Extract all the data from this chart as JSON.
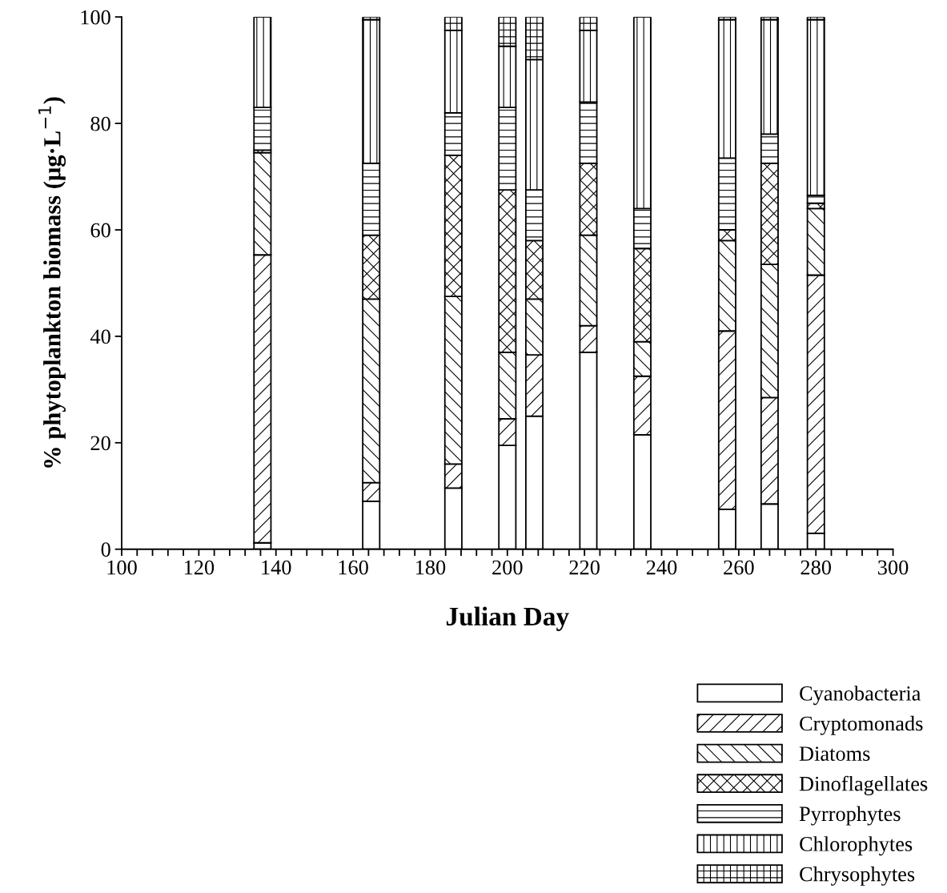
{
  "chart_data": {
    "type": "bar",
    "stacked": true,
    "xlabel": "Julian Day",
    "ylabel": "% phytoplankton biomass (μg·L$^{−1}$)",
    "x": [
      136.5,
      164.7,
      186,
      200,
      207,
      221,
      235,
      257,
      268,
      280
    ],
    "series": [
      {
        "name": "Cyanobacteria",
        "color": "#ffffff",
        "values": [
          1.2,
          9,
          11.5,
          19.5,
          25,
          37,
          21.5,
          7.5,
          8.5,
          3
        ]
      },
      {
        "name": "Cryptomonads",
        "color": "#000000",
        "values": [
          54.1,
          3.5,
          4.5,
          5,
          11.5,
          5,
          11,
          33.5,
          20,
          48.5
        ]
      },
      {
        "name": "Diatoms",
        "color": "#000000",
        "values": [
          19.2,
          34.5,
          31.5,
          12.5,
          10.5,
          17,
          6.5,
          17,
          25,
          12.5
        ]
      },
      {
        "name": "Dinoflagellates",
        "color": "#000000",
        "values": [
          0.5,
          12,
          26.5,
          30.5,
          11,
          13.5,
          17.5,
          2,
          19,
          1
        ]
      },
      {
        "name": "Pyrrophytes",
        "color": "#000000",
        "values": [
          8,
          13.5,
          8,
          15.5,
          9.5,
          11.5,
          7.5,
          13.5,
          5.5,
          1.5
        ]
      },
      {
        "name": "Chlorophytes",
        "color": "#000000",
        "values": [
          17,
          27,
          15.5,
          11.5,
          24.5,
          13.5,
          36,
          26,
          21.5,
          33
        ]
      },
      {
        "name": "Chrysophytes",
        "color": "#000000",
        "values": [
          0,
          0.5,
          2.5,
          5.5,
          8,
          2.5,
          0,
          0.5,
          0.5,
          0.5
        ]
      }
    ],
    "xlim": [
      100,
      300
    ],
    "ylim": [
      0,
      100
    ],
    "xticks": [
      100,
      {
        "value": 104,
        "label": null
      },
      {
        "value": 108,
        "label": null
      },
      {
        "value": 112,
        "label": null
      },
      {
        "value": 116,
        "label": null
      },
      120,
      {
        "value": 124,
        "label": null
      },
      {
        "value": 128,
        "label": null
      },
      {
        "value": 132,
        "label": null
      },
      {
        "value": 136,
        "label": null
      },
      140,
      {
        "value": 144,
        "label": null
      },
      {
        "value": 148,
        "label": null
      },
      {
        "value": 152,
        "label": null
      },
      {
        "value": 156,
        "label": null
      },
      160,
      {
        "value": 164,
        "label": null
      },
      {
        "value": 168,
        "label": null
      },
      {
        "value": 172,
        "label": null
      },
      {
        "value": 176,
        "label": null
      },
      180,
      {
        "value": 184,
        "label": null
      },
      {
        "value": 188,
        "label": null
      },
      {
        "value": 192,
        "label": null
      },
      {
        "value": 196,
        "label": null
      },
      200,
      {
        "value": 204,
        "label": null
      },
      {
        "value": 208,
        "label": null
      },
      {
        "value": 212,
        "label": null
      },
      {
        "value": 216,
        "label": null
      },
      220,
      {
        "value": 224,
        "label": null
      },
      {
        "value": 228,
        "label": null
      },
      {
        "value": 232,
        "label": null
      },
      {
        "value": 236,
        "label": null
      },
      240,
      {
        "value": 244,
        "label": null
      },
      {
        "value": 248,
        "label": null
      },
      {
        "value": 252,
        "label": null
      },
      {
        "value": 256,
        "label": null
      },
      260,
      {
        "value": 264,
        "label": null
      },
      {
        "value": 268,
        "label": null
      },
      {
        "value": 272,
        "label": null
      },
      {
        "value": 276,
        "label": null
      },
      280,
      {
        "value": 284,
        "label": null
      },
      {
        "value": 288,
        "label": null
      },
      {
        "value": 292,
        "label": null
      },
      {
        "value": 296,
        "label": null
      },
      300
    ],
    "yticks": [
      0,
      20,
      40,
      60,
      80,
      100
    ],
    "grid": false,
    "legend": "bottom right"
  }
}
